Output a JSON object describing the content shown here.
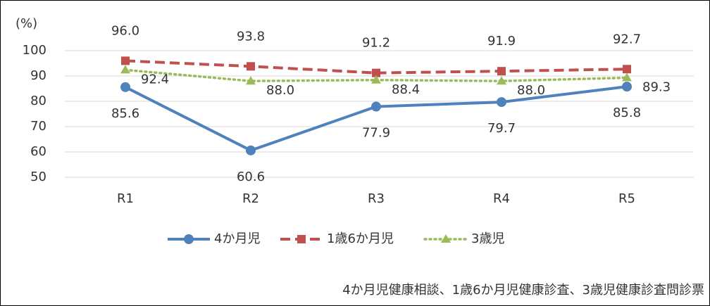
{
  "chart_data": {
    "type": "line",
    "ylabel": "(%)",
    "categories": [
      "R1",
      "R2",
      "R3",
      "R4",
      "R5"
    ],
    "series": [
      {
        "name": "4か月児",
        "color": "#4f81bd",
        "values": [
          85.6,
          60.6,
          77.9,
          79.7,
          85.8
        ],
        "value_labels": [
          "85.6",
          "60.6",
          "77.9",
          "79.7",
          "85.8"
        ]
      },
      {
        "name": "1歳6か月児",
        "color": "#c0504d",
        "values": [
          96,
          93.8,
          91.2,
          91.9,
          92.7
        ],
        "value_labels": [
          "96.0",
          "93.8",
          "91.2",
          "91.9",
          "92.7"
        ]
      },
      {
        "name": "3歳児",
        "color": "#9bbb59",
        "values": [
          92.4,
          88,
          88.4,
          88,
          89.3
        ],
        "value_labels": [
          "92.4",
          "88.0",
          "88.4",
          "88.0",
          "89.3"
        ]
      }
    ],
    "ylim": [
      50,
      100
    ],
    "yticks": [
      50,
      60,
      70,
      80,
      90,
      100
    ],
    "grid": true,
    "legend": "bottom",
    "caption": "4か月児健康相談、1歳6か月児健康診査、3歳児健康診査問診票"
  }
}
